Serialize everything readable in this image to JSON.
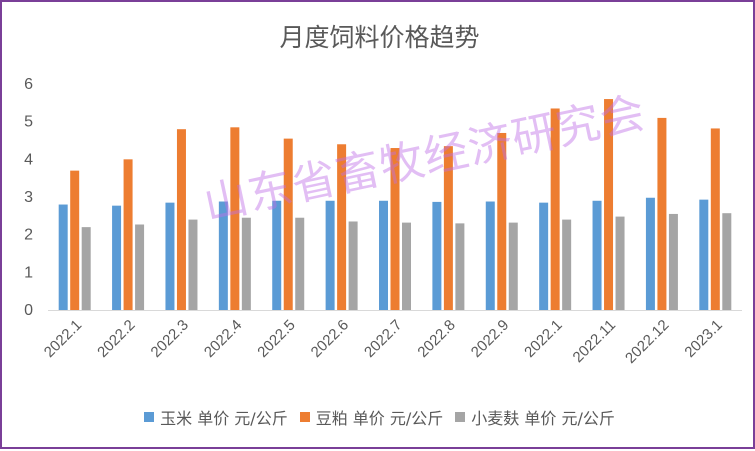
{
  "chart_data": {
    "type": "bar",
    "title": "月度饲料价格趋势",
    "categories": [
      "2022.1",
      "2022.2",
      "2022.3",
      "2022.4",
      "2022.5",
      "2022.6",
      "2022.7",
      "2022.8",
      "2022.9",
      "2022.1",
      "2022.11",
      "2022.12",
      "2023.1"
    ],
    "series": [
      {
        "name": "玉米 单价 元/公斤",
        "color": "#5b9bd5",
        "values": [
          2.8,
          2.77,
          2.85,
          2.88,
          2.9,
          2.9,
          2.9,
          2.87,
          2.88,
          2.85,
          2.9,
          2.98,
          2.93
        ]
      },
      {
        "name": "豆粕 单价 元/公斤",
        "color": "#ed7d31",
        "values": [
          3.7,
          4.0,
          4.8,
          4.85,
          4.55,
          4.4,
          4.3,
          4.35,
          4.7,
          5.35,
          5.6,
          5.1,
          4.82
        ]
      },
      {
        "name": "小麦麸 单价 元/公斤",
        "color": "#a5a5a5",
        "values": [
          2.2,
          2.27,
          2.4,
          2.45,
          2.45,
          2.35,
          2.32,
          2.3,
          2.32,
          2.4,
          2.48,
          2.55,
          2.57
        ]
      }
    ],
    "ylim": [
      0,
      6
    ],
    "yticks": [
      0,
      1,
      2,
      3,
      4,
      5,
      6
    ],
    "grid": false,
    "legend": "bottom"
  },
  "watermark": "山东省畜牧经济研究会"
}
